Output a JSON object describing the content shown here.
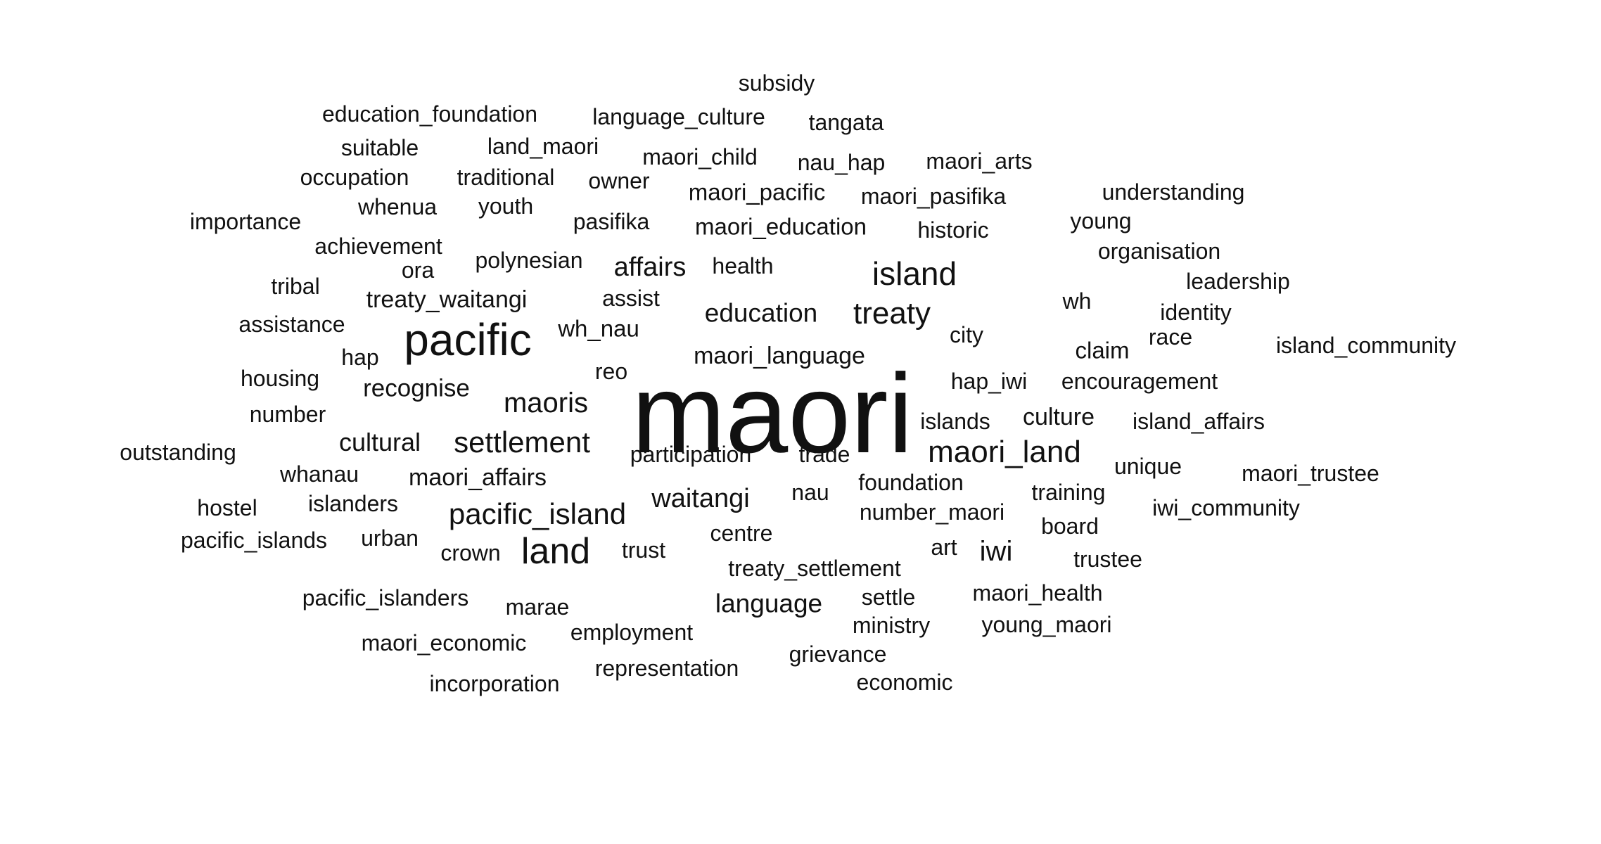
{
  "background": "#ffffff",
  "text_color": "#111111",
  "words": [
    {
      "text": "maori",
      "weight": 1.0
    },
    {
      "text": "pacific",
      "weight": 0.44
    },
    {
      "text": "land",
      "weight": 0.36
    },
    {
      "text": "island",
      "weight": 0.32
    },
    {
      "text": "treaty",
      "weight": 0.3
    },
    {
      "text": "maori_land",
      "weight": 0.3
    },
    {
      "text": "settlement",
      "weight": 0.29
    },
    {
      "text": "pacific_island",
      "weight": 0.29
    },
    {
      "text": "maoris",
      "weight": 0.27
    },
    {
      "text": "iwi",
      "weight": 0.27
    },
    {
      "text": "affairs",
      "weight": 0.26
    },
    {
      "text": "waitangi",
      "weight": 0.26
    },
    {
      "text": "education",
      "weight": 0.26
    },
    {
      "text": "language",
      "weight": 0.26
    },
    {
      "text": "cultural",
      "weight": 0.25
    },
    {
      "text": "recognise",
      "weight": 0.24
    },
    {
      "text": "culture",
      "weight": 0.23
    },
    {
      "text": "treaty_waitangi",
      "weight": 0.23
    },
    {
      "text": "maori_language",
      "weight": 0.23
    },
    {
      "text": "maori_affairs",
      "weight": 0.23
    },
    {
      "text": "claim",
      "weight": 0.22
    },
    {
      "text": "wh_nau",
      "weight": 0.22
    },
    {
      "text": "maori_education",
      "weight": 0.22
    },
    {
      "text": "maori_pacific",
      "weight": 0.22
    },
    {
      "text": "participation",
      "weight": 0.21
    },
    {
      "text": "pasifika",
      "weight": 0.21
    },
    {
      "text": "polynesian",
      "weight": 0.21
    },
    {
      "text": "health",
      "weight": 0.21
    },
    {
      "text": "assist",
      "weight": 0.21
    },
    {
      "text": "maori_child",
      "weight": 0.21
    },
    {
      "text": "owner",
      "weight": 0.21
    },
    {
      "text": "maori_pasifika",
      "weight": 0.21
    },
    {
      "text": "nau_hap",
      "weight": 0.21
    },
    {
      "text": "maori_arts",
      "weight": 0.21
    },
    {
      "text": "understanding",
      "weight": 0.21
    },
    {
      "text": "young",
      "weight": 0.21
    },
    {
      "text": "historic",
      "weight": 0.21
    },
    {
      "text": "organisation",
      "weight": 0.21
    },
    {
      "text": "leadership",
      "weight": 0.21
    },
    {
      "text": "identity",
      "weight": 0.21
    },
    {
      "text": "race",
      "weight": 0.21
    },
    {
      "text": "island_community",
      "weight": 0.21
    },
    {
      "text": "wh",
      "weight": 0.21
    },
    {
      "text": "city",
      "weight": 0.21
    },
    {
      "text": "hap_iwi",
      "weight": 0.21
    },
    {
      "text": "encouragement",
      "weight": 0.21
    },
    {
      "text": "islands",
      "weight": 0.21
    },
    {
      "text": "island_affairs",
      "weight": 0.21
    },
    {
      "text": "unique",
      "weight": 0.21
    },
    {
      "text": "maori_trustee",
      "weight": 0.21
    },
    {
      "text": "training",
      "weight": 0.21
    },
    {
      "text": "iwi_community",
      "weight": 0.21
    },
    {
      "text": "board",
      "weight": 0.21
    },
    {
      "text": "trustee",
      "weight": 0.21
    },
    {
      "text": "maori_health",
      "weight": 0.21
    },
    {
      "text": "young_maori",
      "weight": 0.21
    },
    {
      "text": "trade",
      "weight": 0.21
    },
    {
      "text": "foundation",
      "weight": 0.21
    },
    {
      "text": "nau",
      "weight": 0.21
    },
    {
      "text": "number_maori",
      "weight": 0.21
    },
    {
      "text": "art",
      "weight": 0.21
    },
    {
      "text": "centre",
      "weight": 0.21
    },
    {
      "text": "trust",
      "weight": 0.21
    },
    {
      "text": "treaty_settlement",
      "weight": 0.21
    },
    {
      "text": "settle",
      "weight": 0.21
    },
    {
      "text": "ministry",
      "weight": 0.21
    },
    {
      "text": "grievance",
      "weight": 0.21
    },
    {
      "text": "economic",
      "weight": 0.21
    },
    {
      "text": "representation",
      "weight": 0.21
    },
    {
      "text": "employment",
      "weight": 0.21
    },
    {
      "text": "marae",
      "weight": 0.21
    },
    {
      "text": "maori_economic",
      "weight": 0.21
    },
    {
      "text": "incorporation",
      "weight": 0.21
    },
    {
      "text": "pacific_islanders",
      "weight": 0.21
    },
    {
      "text": "crown",
      "weight": 0.21
    },
    {
      "text": "urban",
      "weight": 0.21
    },
    {
      "text": "pacific_islands",
      "weight": 0.21
    },
    {
      "text": "islanders",
      "weight": 0.21
    },
    {
      "text": "hostel",
      "weight": 0.21
    },
    {
      "text": "whanau",
      "weight": 0.21
    },
    {
      "text": "outstanding",
      "weight": 0.21
    },
    {
      "text": "number",
      "weight": 0.21
    },
    {
      "text": "housing",
      "weight": 0.21
    },
    {
      "text": "hap",
      "weight": 0.21
    },
    {
      "text": "reo",
      "weight": 0.21
    },
    {
      "text": "assistance",
      "weight": 0.21
    },
    {
      "text": "tribal",
      "weight": 0.21
    },
    {
      "text": "ora",
      "weight": 0.21
    },
    {
      "text": "achievement",
      "weight": 0.21
    },
    {
      "text": "importance",
      "weight": 0.21
    },
    {
      "text": "whenua",
      "weight": 0.21
    },
    {
      "text": "youth",
      "weight": 0.21
    },
    {
      "text": "occupation",
      "weight": 0.21
    },
    {
      "text": "traditional",
      "weight": 0.21
    },
    {
      "text": "suitable",
      "weight": 0.21
    },
    {
      "text": "land_maori",
      "weight": 0.21
    },
    {
      "text": "education_foundation",
      "weight": 0.21
    },
    {
      "text": "language_culture",
      "weight": 0.21
    },
    {
      "text": "tangata",
      "weight": 0.21
    },
    {
      "text": "subsidy",
      "weight": 0.21
    }
  ]
}
